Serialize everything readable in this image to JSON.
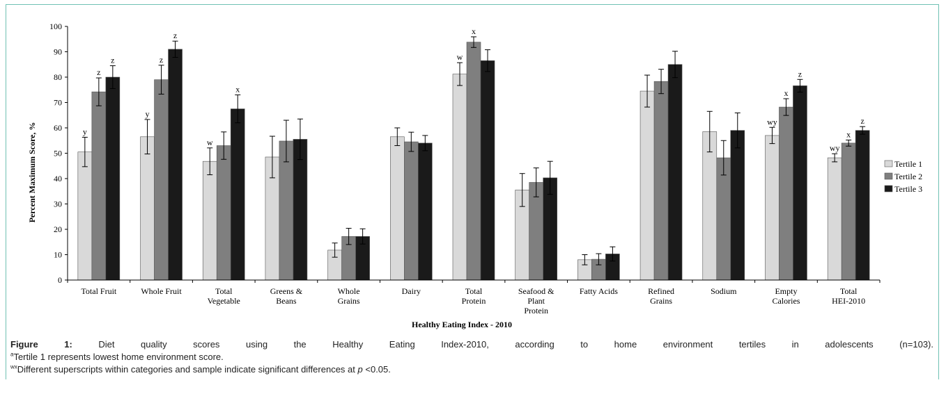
{
  "chart_data": {
    "type": "bar",
    "title": "",
    "xlabel": "Healthy Eating Index - 2010",
    "ylabel": "Percent Maximum Score, %",
    "ylim": [
      0,
      100
    ],
    "yticks": [
      "0",
      "10",
      "20",
      "30",
      "40",
      "50",
      "60",
      "70",
      "80",
      "90",
      "100"
    ],
    "categories": [
      [
        "Total Fruit"
      ],
      [
        "Whole Fruit"
      ],
      [
        "Total",
        "Vegetable"
      ],
      [
        "Greens &",
        "Beans"
      ],
      [
        "Whole",
        "Grains"
      ],
      [
        "Dairy"
      ],
      [
        "Total",
        "Protein"
      ],
      [
        "Seafood &",
        "Plant",
        "Protein"
      ],
      [
        "Fatty Acids"
      ],
      [
        "Refined",
        "Grains"
      ],
      [
        "Sodium"
      ],
      [
        "Empty",
        "Calories"
      ],
      [
        "Total",
        "HEI-2010"
      ]
    ],
    "series": [
      {
        "name": "Tertile 1",
        "color": "#d9d9d9",
        "values": [
          50.5,
          56.5,
          46.8,
          48.5,
          11.8,
          56.5,
          81.2,
          35.5,
          8.0,
          74.5,
          58.5,
          57.0,
          48.2
        ],
        "errors": [
          5.8,
          6.8,
          5.3,
          8.2,
          2.8,
          3.5,
          4.5,
          6.5,
          2.0,
          6.3,
          8.0,
          3.2,
          1.6
        ],
        "labels": [
          "y",
          "y",
          "w",
          "",
          "",
          "",
          "w",
          "",
          "",
          "",
          "",
          "wy",
          "wy"
        ]
      },
      {
        "name": "Tertile 2",
        "color": "#7f7f7f",
        "values": [
          74.2,
          79.0,
          53.0,
          54.8,
          17.2,
          54.5,
          93.8,
          38.5,
          8.2,
          78.3,
          48.2,
          68.2,
          54.0
        ],
        "errors": [
          5.5,
          5.7,
          5.4,
          8.2,
          3.2,
          3.8,
          2.1,
          5.7,
          2.2,
          4.8,
          6.8,
          3.3,
          1.2
        ],
        "labels": [
          "z",
          "z",
          "",
          "",
          "",
          "",
          "x",
          "",
          "",
          "",
          "",
          "x",
          "x"
        ]
      },
      {
        "name": "Tertile 3",
        "color": "#1a1a1a",
        "values": [
          80.0,
          91.0,
          67.5,
          55.5,
          17.2,
          54.0,
          86.5,
          40.3,
          10.3,
          85.0,
          59.0,
          76.6,
          59.0
        ],
        "errors": [
          4.5,
          3.2,
          5.5,
          8.0,
          3.0,
          3.0,
          4.3,
          6.5,
          2.8,
          5.2,
          6.9,
          2.5,
          1.5
        ],
        "labels": [
          "z",
          "z",
          "x",
          "",
          "",
          "",
          "",
          "",
          "",
          "",
          "",
          "z",
          "z"
        ]
      }
    ],
    "legend_position": "right",
    "grid": false
  },
  "caption": {
    "figure_label": "Figure 1:",
    "line1_text": "Diet quality scores using the Healthy Eating Index-2010, according to home environment tertiles in adolescents (n=103).",
    "line2_sup": "a",
    "line2_text": "Tertile 1 represents lowest home environment score.",
    "line3_sup": "wx",
    "line3_text_before": "Different superscripts within categories and sample indicate significant differences at",
    "line3_italic": "p",
    "line3_text_after": "<0.05."
  }
}
